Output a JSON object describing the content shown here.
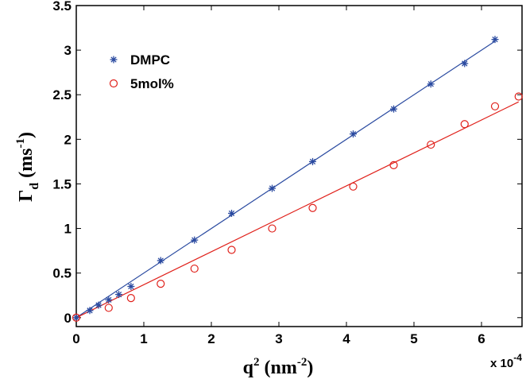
{
  "chart_data": {
    "type": "scatter",
    "xlabel_parts": {
      "main": "q",
      "sup": "2",
      "unit_open": " (nm",
      "unit_sup": "-2",
      "unit_close": ")"
    },
    "ylabel_parts": {
      "main": "Γ",
      "sub": "d",
      "unit_open": " (ms",
      "unit_sup": "-1",
      "unit_close": ")"
    },
    "x_multiplier": {
      "base": "x 10",
      "exp": "-4"
    },
    "x_scale": 0.0001,
    "xlim": [
      0,
      6.6
    ],
    "ylim": [
      -0.1,
      3.5
    ],
    "xticks": [
      {
        "value": 0,
        "label": "0"
      },
      {
        "value": 1,
        "label": "1"
      },
      {
        "value": 2,
        "label": "2"
      },
      {
        "value": 3,
        "label": "3"
      },
      {
        "value": 4,
        "label": "4"
      },
      {
        "value": 5,
        "label": "5"
      },
      {
        "value": 6,
        "label": "6"
      }
    ],
    "yticks": [
      {
        "value": 0,
        "label": "0"
      },
      {
        "value": 0.5,
        "label": "0.5"
      },
      {
        "value": 1,
        "label": "1"
      },
      {
        "value": 1.5,
        "label": "1.5"
      },
      {
        "value": 2,
        "label": "2"
      },
      {
        "value": 2.5,
        "label": "2.5"
      },
      {
        "value": 3,
        "label": "3"
      },
      {
        "value": 3.5,
        "label": "3.5"
      }
    ],
    "grid": false,
    "legend_position": "top-left",
    "series": [
      {
        "name": "DMPC",
        "marker": "asterisk",
        "color": "#2a4aa0",
        "x": [
          0,
          0.2,
          0.33,
          0.48,
          0.63,
          0.81,
          1.25,
          1.75,
          2.3,
          2.9,
          3.5,
          4.1,
          4.7,
          5.25,
          5.75,
          6.2
        ],
        "y": [
          0.0,
          0.08,
          0.14,
          0.2,
          0.26,
          0.35,
          0.64,
          0.87,
          1.17,
          1.45,
          1.75,
          2.06,
          2.34,
          2.62,
          2.85,
          3.12
        ],
        "fit": {
          "x": [
            0,
            6.2
          ],
          "y": [
            0.0,
            3.1
          ]
        }
      },
      {
        "name": "5mol%",
        "marker": "circle",
        "color": "#e0201a",
        "x": [
          0,
          0.48,
          0.81,
          1.25,
          1.75,
          2.3,
          2.9,
          3.5,
          4.1,
          4.7,
          5.25,
          5.75,
          6.2,
          6.55
        ],
        "y": [
          0.0,
          0.11,
          0.22,
          0.38,
          0.55,
          0.76,
          1.0,
          1.23,
          1.47,
          1.71,
          1.94,
          2.17,
          2.37,
          2.48
        ],
        "fit": {
          "x": [
            0,
            6.55
          ],
          "y": [
            0.0,
            2.42
          ]
        }
      }
    ]
  }
}
